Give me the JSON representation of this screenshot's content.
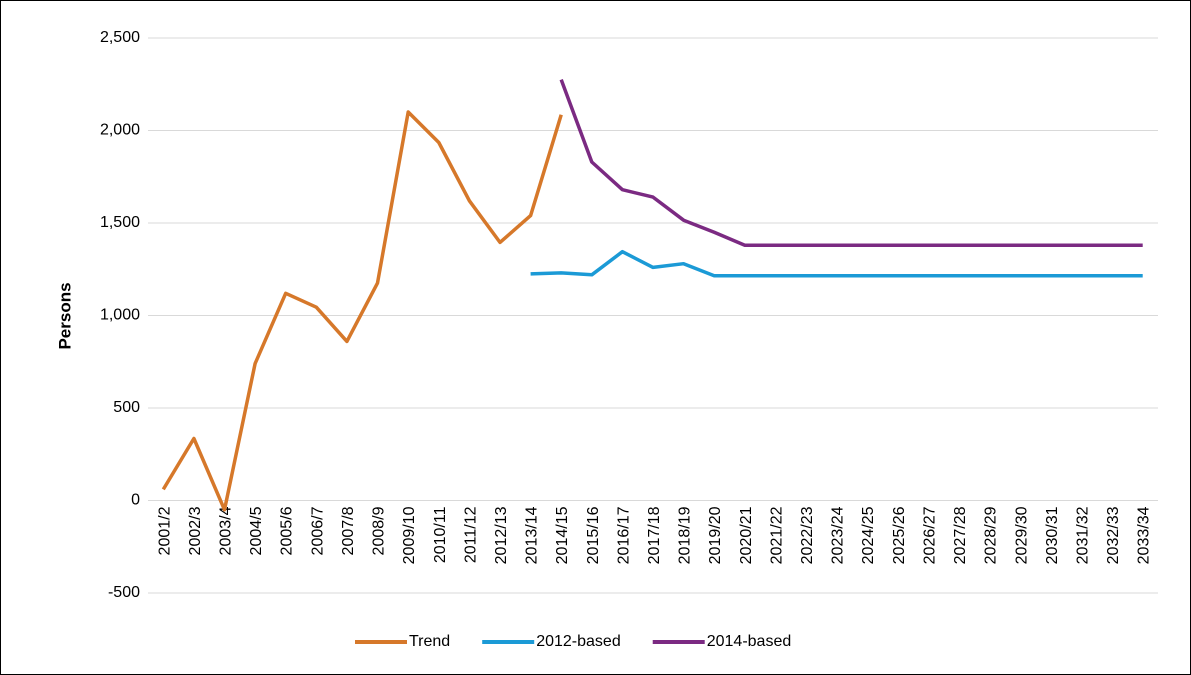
{
  "chart_data": {
    "type": "line",
    "y_label": "Persons",
    "categories": [
      "2001/2",
      "2002/3",
      "2003/4",
      "2004/5",
      "2005/6",
      "2006/7",
      "2007/8",
      "2008/9",
      "2009/10",
      "2010/11",
      "2011/12",
      "2012/13",
      "2013/14",
      "2014/15",
      "2015/16",
      "2016/17",
      "2017/18",
      "2018/19",
      "2019/20",
      "2020/21",
      "2021/22",
      "2022/23",
      "2023/24",
      "2024/25",
      "2025/26",
      "2026/27",
      "2027/28",
      "2028/29",
      "2029/30",
      "2030/31",
      "2031/32",
      "2032/33",
      "2033/34"
    ],
    "series": [
      {
        "name": "Trend",
        "color": "#d6782a",
        "values": [
          60,
          335,
          -50,
          740,
          1120,
          1045,
          860,
          1175,
          2100,
          1935,
          1620,
          1395,
          1540,
          2085,
          null,
          null,
          null,
          null,
          null,
          null,
          null,
          null,
          null,
          null,
          null,
          null,
          null,
          null,
          null,
          null,
          null,
          null,
          null
        ]
      },
      {
        "name": "2012-based",
        "color": "#1b9ad6",
        "values": [
          null,
          null,
          null,
          null,
          null,
          null,
          null,
          null,
          null,
          null,
          null,
          null,
          1225,
          1230,
          1220,
          1345,
          1260,
          1280,
          1215,
          1215,
          1215,
          1215,
          1215,
          1215,
          1215,
          1215,
          1215,
          1215,
          1215,
          1215,
          1215,
          1215,
          1215
        ]
      },
      {
        "name": "2014-based",
        "color": "#7b2a82",
        "values": [
          null,
          null,
          null,
          null,
          null,
          null,
          null,
          null,
          null,
          null,
          null,
          null,
          null,
          2275,
          1830,
          1680,
          1640,
          1515,
          1450,
          1380,
          1380,
          1380,
          1380,
          1380,
          1380,
          1380,
          1380,
          1380,
          1380,
          1380,
          1380,
          1380,
          1380
        ]
      }
    ],
    "ylim": [
      -500,
      2500
    ],
    "yticks": [
      -500,
      0,
      500,
      {
        "value": 1000,
        "label": "1,000"
      },
      {
        "value": 1500,
        "label": "1,500"
      },
      {
        "value": 2000,
        "label": "2,000"
      },
      {
        "value": 2500,
        "label": "2,500"
      }
    ],
    "grid": true,
    "legend": "bottom"
  }
}
